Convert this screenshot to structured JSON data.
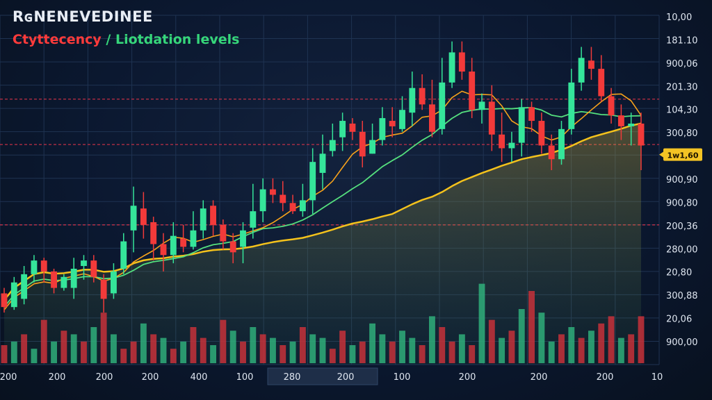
{
  "title": "RɢNENEVEDINEE",
  "subtitle": {
    "part_a": "Ctyttecency",
    "separator": " / ",
    "part_b": "Liotdation levels"
  },
  "colors": {
    "up": "#35e59a",
    "down": "#f23a3a",
    "ma_fast": "#f7a21b",
    "ma_mid": "#55e07e",
    "ma_slow": "#f4c21c",
    "liq_line": "#e0344a",
    "tag_bg": "#f3c324"
  },
  "chart_data": {
    "type": "candlestick",
    "title": "RɢNENEVEDINEE",
    "subtitle": "Ctyttecency / Liotdation levels",
    "ylim": [
      0,
      100
    ],
    "y_ticks": [
      "10,00",
      "181.10",
      "900,06",
      "201.30",
      "104,30",
      "300,80",
      "1w1,60",
      "900,90",
      "900,80",
      "200,36",
      "280,00",
      "20,80",
      "300,88",
      "20,06",
      "900,00"
    ],
    "x_ticks": [
      "200",
      "200",
      "200",
      "200",
      "400",
      "100",
      "280",
      "200",
      "100",
      "200",
      "200",
      "200",
      "10"
    ],
    "current_price_tag": "1w1,60",
    "liquidation_levels": [
      0.63,
      0.4,
      0.76
    ],
    "candles": [
      [
        26,
        21,
        28,
        19
      ],
      [
        21,
        30,
        32,
        20
      ],
      [
        24,
        33,
        36,
        22
      ],
      [
        33,
        38,
        40,
        30
      ],
      [
        38,
        34,
        39,
        30
      ],
      [
        34,
        28,
        35,
        26
      ],
      [
        28,
        32,
        33,
        27
      ],
      [
        28,
        35,
        39,
        24
      ],
      [
        36,
        38,
        40,
        31
      ],
      [
        38,
        32,
        40,
        30
      ],
      [
        31,
        24,
        33,
        19
      ],
      [
        26,
        34,
        37,
        24
      ],
      [
        35,
        45,
        48,
        33
      ],
      [
        49,
        58,
        65,
        41
      ],
      [
        57,
        51,
        63,
        46
      ],
      [
        52,
        44,
        54,
        38
      ],
      [
        44,
        40,
        48,
        34
      ],
      [
        40,
        47,
        52,
        37
      ],
      [
        46,
        43,
        51,
        41
      ],
      [
        43,
        49,
        56,
        42
      ],
      [
        49,
        57,
        60,
        46
      ],
      [
        58,
        51,
        60,
        47
      ],
      [
        51,
        45,
        53,
        42
      ],
      [
        45,
        41,
        48,
        37
      ],
      [
        43,
        49,
        52,
        37
      ],
      [
        50,
        56,
        66,
        46
      ],
      [
        56,
        64,
        68,
        52
      ],
      [
        64,
        62,
        68,
        59
      ],
      [
        62,
        59,
        67,
        56
      ],
      [
        59,
        56,
        62,
        55
      ],
      [
        56,
        60,
        66,
        54
      ],
      [
        60,
        74,
        79,
        55
      ],
      [
        70,
        77,
        84,
        64
      ],
      [
        78,
        82,
        88,
        76
      ],
      [
        83,
        89,
        92,
        78
      ],
      [
        88,
        85,
        90,
        82
      ],
      [
        85,
        76,
        89,
        72
      ],
      [
        77,
        82,
        88,
        77
      ],
      [
        82,
        90,
        94,
        80
      ],
      [
        89,
        87,
        94,
        83
      ],
      [
        86,
        93,
        98,
        85
      ],
      [
        92,
        101,
        107,
        87
      ],
      [
        101,
        95,
        106,
        93
      ],
      [
        95,
        85,
        104,
        83
      ],
      [
        86,
        103,
        112,
        84
      ],
      [
        103,
        114,
        118,
        101
      ],
      [
        114,
        107,
        118,
        104
      ],
      [
        107,
        93,
        112,
        90
      ],
      [
        93,
        96,
        99,
        88
      ],
      [
        96,
        84,
        102,
        78
      ],
      [
        84,
        79,
        92,
        74
      ],
      [
        79,
        81,
        85,
        74
      ],
      [
        81,
        94,
        97,
        76
      ],
      [
        94,
        89,
        96,
        85
      ],
      [
        89,
        80,
        92,
        77
      ],
      [
        80,
        75,
        84,
        71
      ],
      [
        75,
        86,
        89,
        73
      ],
      [
        86,
        103,
        108,
        84
      ],
      [
        103,
        112,
        116,
        100
      ],
      [
        111,
        108,
        116,
        104
      ],
      [
        108,
        98,
        113,
        96
      ],
      [
        98,
        91,
        101,
        88
      ],
      [
        91,
        87,
        95,
        82
      ],
      [
        87,
        88,
        92,
        80
      ],
      [
        88,
        80,
        92,
        71
      ]
    ],
    "volume": [
      10,
      12,
      16,
      8,
      24,
      12,
      18,
      16,
      12,
      20,
      28,
      16,
      8,
      12,
      22,
      16,
      14,
      8,
      12,
      20,
      14,
      10,
      24,
      18,
      12,
      20,
      16,
      14,
      10,
      12,
      20,
      16,
      14,
      8,
      18,
      10,
      12,
      22,
      16,
      12,
      18,
      14,
      10,
      26,
      20,
      12,
      16,
      10,
      44,
      24,
      14,
      18,
      30,
      40,
      28,
      12,
      16,
      20,
      14,
      18,
      22,
      26,
      14,
      16,
      26
    ],
    "volume_up": [
      0,
      1,
      0,
      1,
      0,
      1,
      0,
      1,
      0,
      1,
      0,
      1,
      0,
      0,
      1,
      0,
      1,
      0,
      1,
      0,
      0,
      1,
      0,
      1,
      0,
      1,
      0,
      1,
      0,
      1,
      0,
      1,
      1,
      0,
      0,
      1,
      0,
      1,
      1,
      0,
      1,
      1,
      0,
      1,
      0,
      0,
      1,
      0,
      1,
      0,
      1,
      0,
      1,
      0,
      1,
      1,
      0,
      1,
      0,
      1,
      0,
      0,
      1,
      0,
      0
    ]
  }
}
